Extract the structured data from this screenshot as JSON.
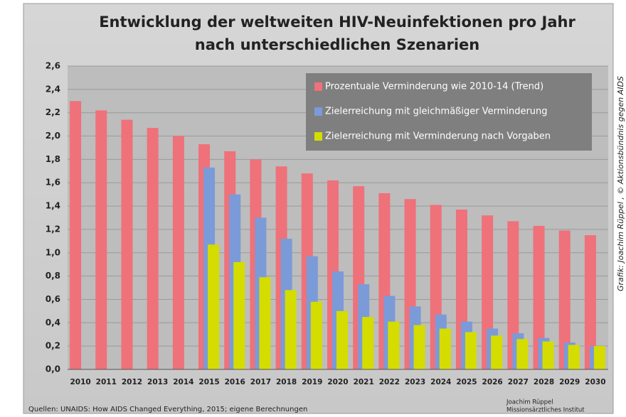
{
  "chart_data": {
    "type": "bar",
    "title": "Entwicklung der weltweiten HIV-Neuinfektionen pro Jahr",
    "subtitle": "nach unterschiedlichen Szenarien",
    "categories": [
      "2010",
      "2011",
      "2012",
      "2013",
      "2014",
      "2015",
      "2016",
      "2017",
      "2018",
      "2019",
      "2020",
      "2021",
      "2022",
      "2023",
      "2024",
      "2025",
      "2026",
      "2027",
      "2028",
      "2029",
      "2030"
    ],
    "series": [
      {
        "name": "Prozentuale Verminderung wie 2010-14 (Trend)",
        "color": "#ef717a",
        "values": [
          2.3,
          2.22,
          2.14,
          2.07,
          2.0,
          1.93,
          1.87,
          1.8,
          1.74,
          1.68,
          1.62,
          1.57,
          1.51,
          1.46,
          1.41,
          1.37,
          1.32,
          1.27,
          1.23,
          1.19,
          1.15
        ]
      },
      {
        "name": "Zielerreichung mit gleichmäßiger Verminderung",
        "color": "#7b9ad8",
        "values": [
          null,
          null,
          null,
          null,
          null,
          1.73,
          1.5,
          1.3,
          1.12,
          0.97,
          0.84,
          0.73,
          0.63,
          0.54,
          0.47,
          0.41,
          0.35,
          0.31,
          0.27,
          0.23,
          0.2
        ]
      },
      {
        "name": "Zielerreichung mit Verminderung nach Vorgaben",
        "color": "#d4dc00",
        "values": [
          null,
          null,
          null,
          null,
          null,
          1.07,
          0.92,
          0.79,
          0.68,
          0.58,
          0.5,
          0.45,
          0.41,
          0.38,
          0.35,
          0.32,
          0.29,
          0.26,
          0.24,
          0.21,
          0.2
        ]
      }
    ],
    "ylim": [
      0,
      2.6
    ],
    "yticks": [
      {
        "value": 0,
        "label": "0,0"
      },
      {
        "value": 0.2,
        "label": "0,2"
      },
      {
        "value": 0.4,
        "label": "0,4"
      },
      {
        "value": 0.6,
        "label": "0,6"
      },
      {
        "value": 0.8,
        "label": "0,8"
      },
      {
        "value": 1.0,
        "label": "1,0"
      },
      {
        "value": 1.2,
        "label": "1,2"
      },
      {
        "value": 1.4,
        "label": "1,4"
      },
      {
        "value": 1.6,
        "label": "1,6"
      },
      {
        "value": 1.8,
        "label": "1,8"
      },
      {
        "value": 2.0,
        "label": "2,0"
      },
      {
        "value": 2.2,
        "label": "2,2"
      },
      {
        "value": 2.4,
        "label": "2,4"
      },
      {
        "value": 2.6,
        "label": "2,6"
      }
    ],
    "grid": true,
    "legend": "top-right",
    "source": "Quellen: UNAIDS: How AIDS Changed Everything, 2015; eigene Berechnungen",
    "author": [
      "Joachim Rüppel",
      "Missionsärztliches Institut"
    ],
    "credit": "Grafik: Joachim Rüppel , © Aktionsbündnis gegen AIDS"
  }
}
